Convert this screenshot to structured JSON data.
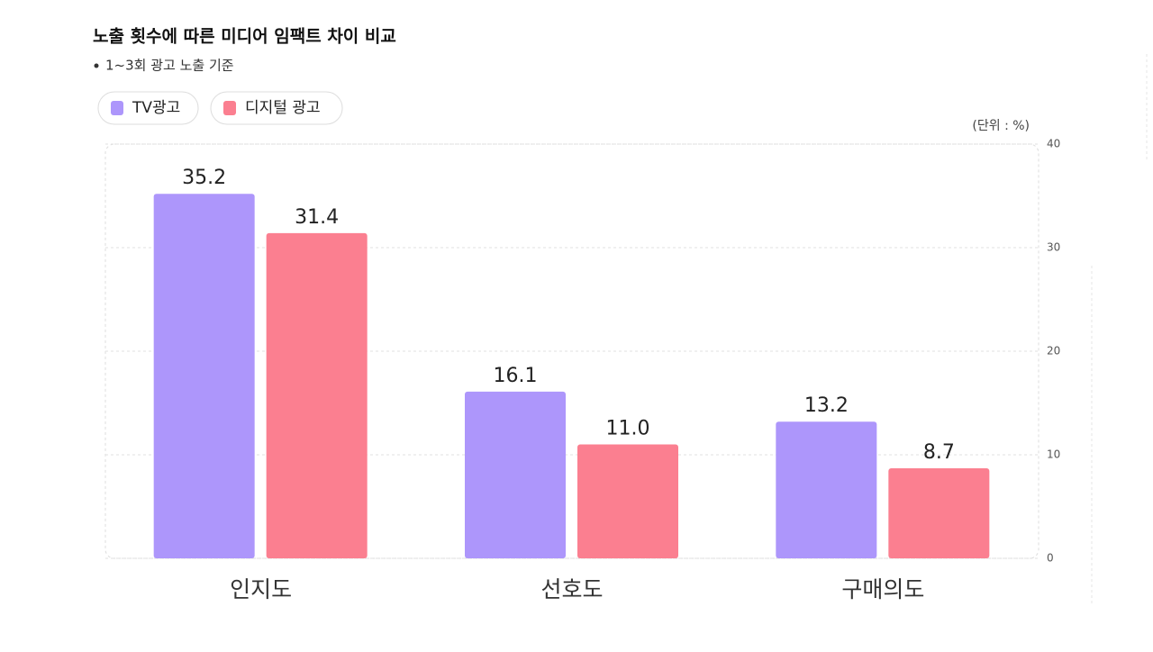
{
  "chart_data": {
    "type": "bar",
    "title": "노출 횟수에 따른 미디어 임팩트 차이 비교",
    "subtitle": "1~3회 광고 노출 기준",
    "unit_label": "(단위 : %)",
    "categories": [
      "인지도",
      "선호도",
      "구매의도"
    ],
    "series": [
      {
        "name": "TV광고",
        "color": "#ad96fb",
        "values": [
          35.2,
          16.1,
          13.2
        ],
        "value_labels": [
          "35.2",
          "16.1",
          "13.2"
        ]
      },
      {
        "name": "디지털 광고",
        "color": "#fb7f90",
        "values": [
          31.4,
          11.0,
          8.7
        ],
        "value_labels": [
          "31.4",
          "11.0",
          "8.7"
        ]
      }
    ],
    "ylim": [
      0,
      40
    ],
    "yticks": [
      0,
      10,
      20,
      30,
      40
    ],
    "grid": true,
    "legend": "top-left"
  }
}
